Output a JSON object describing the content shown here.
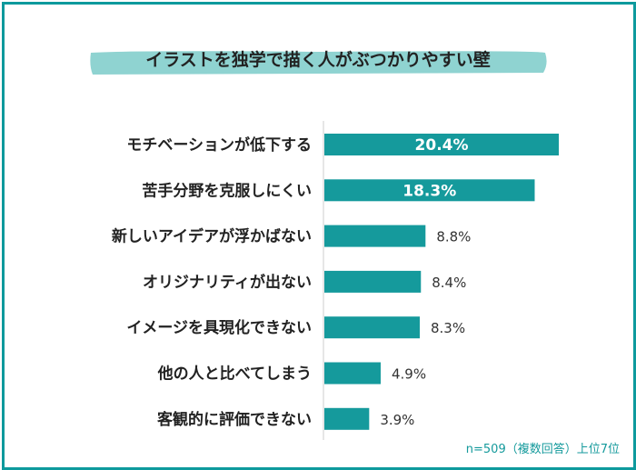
{
  "chart_data": {
    "type": "bar",
    "orientation": "horizontal",
    "title": "イラストを独学で描く人がぶつかりやすい壁",
    "categories": [
      "モチベーションが低下する",
      "苦手分野を克服しにくい",
      "新しいアイデアが浮かばない",
      "オリジナリティが出ない",
      "イメージを具現化できない",
      "他の人と比べてしまう",
      "客観的に評価できない"
    ],
    "values": [
      20.4,
      18.3,
      8.8,
      8.4,
      8.3,
      4.9,
      3.9
    ],
    "value_labels": [
      "20.4%",
      "18.3%",
      "8.8%",
      "8.4%",
      "8.3%",
      "4.9%",
      "3.9%"
    ],
    "unit": "%",
    "xlim": [
      0,
      30
    ],
    "grid": false,
    "note": "n=509（複数回答）上位7位",
    "colors": {
      "bar": "#159a9c",
      "border": "#0e9a9d",
      "title_band": "#8fd3d1",
      "text": "#222222",
      "note": "#159a9c"
    }
  }
}
